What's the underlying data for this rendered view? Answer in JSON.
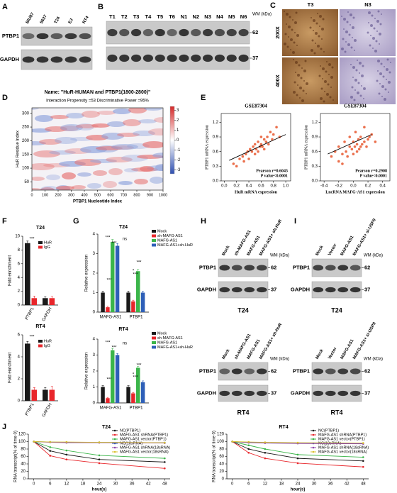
{
  "panel_labels": [
    "A",
    "B",
    "C",
    "D",
    "E",
    "F",
    "G",
    "H",
    "I",
    "J"
  ],
  "blots": [
    {
      "lanes": [
        "BIU87",
        "5637",
        "T24",
        "EJ",
        "RT4"
      ],
      "rows": [
        "PTBP1",
        "GAPDH"
      ]
    },
    {
      "lanes": [
        "T1",
        "T2",
        "T3",
        "T4",
        "T5",
        "T6",
        "N1",
        "N2",
        "N3",
        "N4",
        "N5",
        "N6"
      ],
      "wm_title": "WM (kDa)",
      "wm": [
        62,
        37
      ]
    },
    {
      "lanes": [
        "Mock",
        "sh-MAFG-AS1",
        "MAFG-AS1",
        "MAFG-AS1+ sh-HuR"
      ],
      "rows": [
        "PTBP1",
        "GAPDH"
      ],
      "wm_title": "WM (kDa)",
      "wm": [
        62,
        37
      ],
      "cell": "T24"
    },
    {
      "lanes": [
        "Mock",
        "sh-MAFG-AS1",
        "MAFG-AS1",
        "MAFG-AS1+ sh-HuR"
      ],
      "rows": [
        "PTBP1",
        "GAPDH"
      ],
      "wm_title": "WM (kDa)",
      "wm": [
        62,
        37
      ],
      "cell": "RT4"
    },
    {
      "lanes": [
        "Mock",
        "Vector",
        "MAFG-AS1",
        "MAFG-AS1+ si-USP9"
      ],
      "rows": [
        "PTBP1",
        "GAPDH"
      ],
      "wm_title": "WM (kDa)",
      "wm": [
        62,
        37
      ],
      "cell": "T24"
    },
    {
      "lanes": [
        "Mock",
        "Vector",
        "MAFG-AS1",
        "MAFG-AS1+ si-USP9"
      ],
      "rows": [
        "PTBP1",
        "GAPDH"
      ],
      "wm_title": "WM (kDa)",
      "wm": [
        62,
        37
      ],
      "cell": "RT4"
    }
  ],
  "micrographs": {
    "columns": [
      "T3",
      "N3"
    ],
    "rows": [
      "200X",
      "400X"
    ]
  },
  "chart_data": [
    {
      "type": "heatmap",
      "title": "Name: \"HuR-HUMAN and PTBP1(1800-2800)\"",
      "subtitle": "Interaction Propensity =53  Discriminative Power =95%",
      "x_label": "PTBP1 Nucleotide Index",
      "y_label": "HuR Residue Index",
      "xlim": [
        0,
        1000
      ],
      "xticks": [
        0,
        100,
        200,
        300,
        400,
        500,
        600,
        700,
        800,
        900,
        1000
      ],
      "ylim": [
        20,
        320
      ],
      "yticks": [
        50,
        100,
        150,
        200,
        250,
        300
      ],
      "clim": [
        -3.4,
        3.4
      ],
      "cticks": [
        -3,
        -2,
        -1,
        0,
        1,
        2,
        3
      ]
    },
    {
      "type": "scatter",
      "title": "GSE87304",
      "x_label": "HuR mRNA expression",
      "y_label": "PTBP1 mRNA expression",
      "annotations": [
        "Pearson r=0.6045",
        "P value<0.0001"
      ],
      "color": "#e8572e",
      "xlim": [
        -0.05,
        1.08
      ],
      "xticks": [
        {
          "value": 0,
          "label": "0.0"
        },
        {
          "value": 0.2,
          "label": "0.2"
        },
        {
          "value": 0.4,
          "label": "0.4"
        },
        {
          "value": 0.6,
          "label": "0.6"
        },
        {
          "value": 0.8,
          "label": "0.8"
        },
        {
          "value": 1,
          "label": "1.0"
        }
      ],
      "ylim": [
        0,
        1.38
      ],
      "yticks": [
        {
          "value": 0,
          "label": "0.0"
        },
        0.3,
        0.6,
        0.9,
        1.2
      ],
      "x": [
        0.15,
        0.2,
        0.25,
        0.3,
        0.32,
        0.35,
        0.38,
        0.4,
        0.42,
        0.45,
        0.47,
        0.5,
        0.5,
        0.52,
        0.55,
        0.55,
        0.58,
        0.6,
        0.6,
        0.62,
        0.65,
        0.65,
        0.68,
        0.7,
        0.72,
        0.75,
        0.78,
        0.8,
        0.85,
        0.9
      ],
      "y": [
        0.35,
        0.3,
        0.45,
        0.5,
        0.4,
        0.55,
        0.6,
        0.45,
        0.65,
        0.6,
        0.7,
        0.55,
        0.75,
        0.65,
        0.8,
        0.6,
        0.7,
        0.75,
        0.9,
        0.7,
        0.85,
        0.65,
        0.8,
        0.9,
        0.75,
        1.0,
        0.85,
        0.95,
        1.1,
        0.9
      ],
      "trend": {
        "x": [
          0.08,
          1.0
        ],
        "y": [
          0.42,
          0.95
        ]
      }
    },
    {
      "type": "scatter",
      "title": "GSE87304",
      "x_label": "LncRNA MAFG-AS1 expression",
      "y_label": "PTBP1 mRNA expression",
      "annotations": [
        "Pearson r=0.2908",
        "P value<0.0001"
      ],
      "color": "#e8572e",
      "xlim": [
        -0.45,
        0.5
      ],
      "xticks": [
        {
          "value": -0.4,
          "label": "-0.4"
        },
        {
          "value": -0.2,
          "label": "-0.2"
        },
        {
          "value": 0,
          "label": "0.0"
        },
        0.2,
        0.4
      ],
      "ylim": [
        0,
        1.38
      ],
      "yticks": [
        {
          "value": 0,
          "label": "0.0"
        },
        0.3,
        0.6,
        0.9,
        1.2
      ],
      "x": [
        -0.3,
        -0.25,
        -0.2,
        -0.2,
        -0.15,
        -0.12,
        -0.1,
        -0.08,
        -0.05,
        -0.05,
        -0.02,
        0,
        0,
        0.02,
        0.03,
        0.05,
        0.05,
        0.07,
        0.08,
        0.1,
        0.1,
        0.12,
        0.15,
        0.15,
        0.18,
        0.2,
        0.22,
        0.25,
        0.3,
        -0.15
      ],
      "y": [
        0.5,
        0.6,
        0.4,
        0.7,
        0.55,
        0.8,
        0.6,
        0.5,
        0.7,
        0.9,
        0.65,
        0.55,
        0.8,
        0.7,
        1.0,
        0.6,
        0.75,
        0.85,
        0.65,
        0.7,
        0.9,
        0.75,
        0.8,
        1.1,
        0.7,
        0.85,
        0.9,
        0.95,
        0.8,
        0.35
      ],
      "trend": {
        "x": [
          -0.35,
          0.25
        ],
        "y": [
          0.55,
          0.95
        ]
      }
    },
    {
      "type": "bar",
      "title": "T24",
      "y_label": "Fold enrichment",
      "categories": [
        "PTBP1",
        "GAPDH"
      ],
      "ylim": [
        0,
        10
      ],
      "yticks": [
        0,
        2,
        4,
        6,
        8,
        10
      ],
      "significance": [
        "***"
      ],
      "series": [
        {
          "name": "HuR",
          "color": "#1a1a1a",
          "values": [
            9,
            1
          ],
          "errors": [
            0.3,
            0.2
          ]
        },
        {
          "name": "IgG",
          "color": "#e8262b",
          "values": [
            1,
            1
          ],
          "errors": [
            0.3,
            0.25
          ]
        }
      ]
    },
    {
      "type": "bar",
      "title": "RT4",
      "y_label": "Fold enrichment",
      "categories": [
        "PTBP1",
        "GAPDH"
      ],
      "ylim": [
        0,
        6
      ],
      "yticks": [
        0,
        2,
        4,
        6
      ],
      "significance": [
        "***"
      ],
      "series": [
        {
          "name": "HuR",
          "color": "#1a1a1a",
          "values": [
            5.2,
            1
          ],
          "errors": [
            0.2,
            0.2
          ]
        },
        {
          "name": "IgG",
          "color": "#e8262b",
          "values": [
            1,
            1
          ],
          "errors": [
            0.2,
            0.3
          ]
        }
      ]
    },
    {
      "type": "bar",
      "title": "T24",
      "y_label": "Relative expression",
      "categories": [
        "MAFG-AS1",
        "PTBP1"
      ],
      "ylim": [
        0,
        4
      ],
      "yticks": [
        0,
        1,
        2,
        3,
        4
      ],
      "significance": [
        "***",
        "***",
        "***",
        "ns",
        "*",
        "***",
        "***"
      ],
      "series": [
        {
          "name": "Mock",
          "color": "#1a1a1a",
          "values": [
            1,
            1
          ],
          "errors": [
            0.08,
            0.08
          ]
        },
        {
          "name": "sh-MAFG-AS1",
          "color": "#e8262b",
          "values": [
            0.25,
            0.55
          ],
          "errors": [
            0.05,
            0.06
          ]
        },
        {
          "name": "MAFG-AS1",
          "color": "#3bb54a",
          "values": [
            3.6,
            2.1
          ],
          "errors": [
            0.12,
            0.1
          ]
        },
        {
          "name": "MAFG-AS1+sh-HuR",
          "color": "#2e5fb8",
          "values": [
            3.4,
            1.0
          ],
          "errors": [
            0.12,
            0.08
          ]
        }
      ]
    },
    {
      "type": "bar",
      "title": "RT4",
      "y_label": "Relative expression",
      "categories": [
        "MAFG-AS1",
        "PTBP1"
      ],
      "ylim": [
        0,
        4
      ],
      "yticks": [
        0,
        1,
        2,
        3,
        4
      ],
      "significance": [
        "***",
        "***",
        "***",
        "ns",
        "*",
        "***",
        "***"
      ],
      "series": [
        {
          "name": "Mock",
          "color": "#1a1a1a",
          "values": [
            1,
            1
          ],
          "errors": [
            0.08,
            0.08
          ]
        },
        {
          "name": "sh-MAFG-AS1",
          "color": "#e8262b",
          "values": [
            0.3,
            0.6
          ],
          "errors": [
            0.05,
            0.06
          ]
        },
        {
          "name": "MAFG-AS1",
          "color": "#3bb54a",
          "values": [
            3.3,
            2.2
          ],
          "errors": [
            0.12,
            0.1
          ]
        },
        {
          "name": "MAFG-AS1+sh-HuR",
          "color": "#2e5fb8",
          "values": [
            3.0,
            1.3
          ],
          "errors": [
            0.1,
            0.08
          ]
        }
      ]
    },
    {
      "type": "line",
      "title": "T24",
      "x_label": "hour(s)",
      "y_label": "RNA transcript(% of time 0)",
      "xlim": [
        -2,
        50
      ],
      "xticks": [
        0,
        6,
        12,
        18,
        24,
        30,
        36,
        42,
        48
      ],
      "ylim": [
        0,
        120
      ],
      "yticks": [
        0,
        20,
        40,
        60,
        80,
        100,
        120
      ],
      "x": [
        0,
        6,
        12,
        24,
        48
      ],
      "series": [
        {
          "name": "NC(PTBP1)",
          "color": "#1a1a1a",
          "values": [
            100,
            75,
            65,
            52,
            45
          ]
        },
        {
          "name": "MAFG-AS1 shRNA(PTBP1)",
          "color": "#e8262b",
          "values": [
            100,
            62,
            52,
            42,
            28
          ]
        },
        {
          "name": "MAFG-AS1 vector(PTBP1)",
          "color": "#3bb54a",
          "values": [
            100,
            85,
            76,
            63,
            55
          ]
        },
        {
          "name": "NC(18sRNA)",
          "color": "#2e5fb8",
          "values": [
            100,
            99,
            98,
            98,
            97
          ]
        },
        {
          "name": "MAFG-AS1 shRNA(18sRNA)",
          "color": "#8e44ad",
          "values": [
            100,
            98,
            97,
            97,
            96
          ]
        },
        {
          "name": "MAFG-AS1 vector(18sRNA)",
          "color": "#d9c22e",
          "values": [
            100,
            99,
            99,
            98,
            97
          ]
        }
      ]
    },
    {
      "type": "line",
      "title": "RT4",
      "x_label": "hour(s)",
      "y_label": "RNA transcript(% of time 0)",
      "xlim": [
        -2,
        50
      ],
      "xticks": [
        0,
        6,
        12,
        18,
        24,
        30,
        36,
        42,
        48
      ],
      "ylim": [
        0,
        120
      ],
      "yticks": [
        0,
        20,
        40,
        60,
        80,
        100,
        120
      ],
      "x": [
        0,
        6,
        12,
        24,
        48
      ],
      "series": [
        {
          "name": "NC(PTBP1)",
          "color": "#1a1a1a",
          "values": [
            100,
            80,
            70,
            55,
            48
          ]
        },
        {
          "name": "MAFG-AS1 shRNA(PTBP1)",
          "color": "#e8262b",
          "values": [
            100,
            70,
            55,
            42,
            32
          ]
        },
        {
          "name": "MAFG-AS1 vector(PTBP1)",
          "color": "#3bb54a",
          "values": [
            100,
            90,
            80,
            65,
            58
          ]
        },
        {
          "name": "NC(18sRNA)",
          "color": "#2e5fb8",
          "values": [
            100,
            98,
            97,
            96,
            95
          ]
        },
        {
          "name": "MAFG-AS1 shRNA(18sRNA)",
          "color": "#8e44ad",
          "values": [
            100,
            97,
            96,
            95,
            94
          ]
        },
        {
          "name": "MAFG-AS1 vector(18sRNA)",
          "color": "#d9c22e",
          "values": [
            100,
            99,
            98,
            97,
            96
          ]
        }
      ]
    }
  ]
}
